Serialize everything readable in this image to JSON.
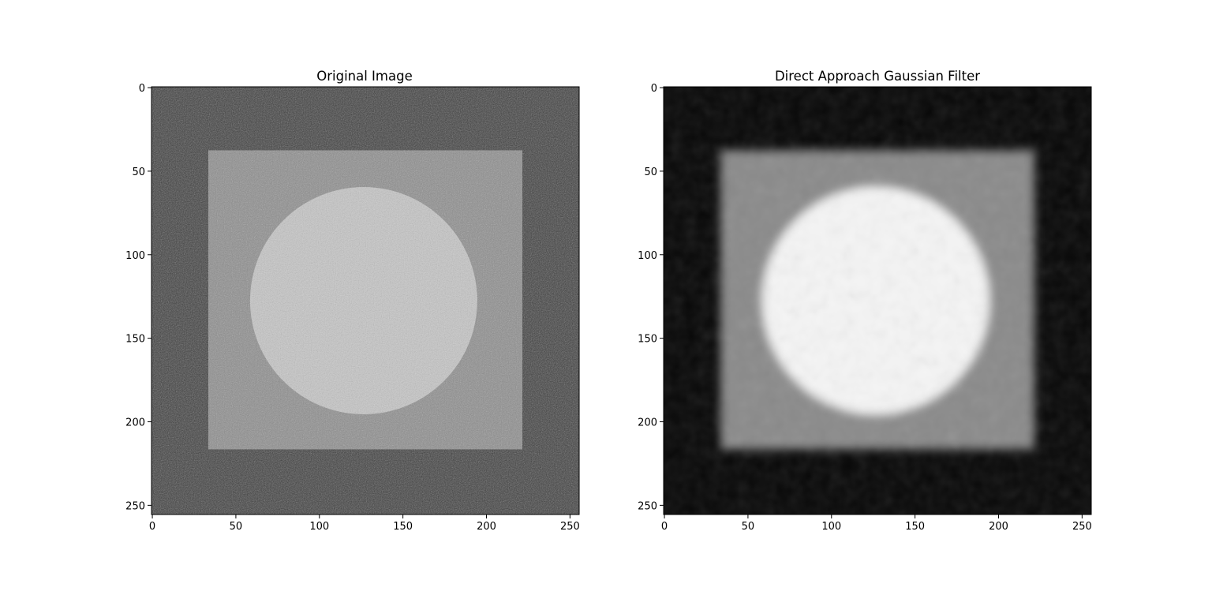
{
  "chart_data": [
    {
      "type": "heatmap",
      "title": "Original Image",
      "xlabel": "",
      "ylabel": "",
      "xlim": [
        0,
        256
      ],
      "ylim": [
        256,
        0
      ],
      "xticks": [
        0,
        50,
        100,
        150,
        200,
        250
      ],
      "yticks": [
        0,
        50,
        100,
        150,
        200,
        250
      ],
      "xtick_labels": [
        "0",
        "50",
        "100",
        "150",
        "200",
        "250"
      ],
      "ytick_labels": [
        "0",
        "50",
        "100",
        "150",
        "200",
        "250"
      ],
      "colormap": "gray",
      "image_size": [
        256,
        256
      ],
      "content": {
        "background": {
          "intensity": 0.24,
          "color": "#3c3c3c"
        },
        "square": {
          "x0": 34,
          "x1": 222,
          "y0": 38,
          "y1": 217,
          "intensity": 0.55,
          "color": "#8c8c8c"
        },
        "circle": {
          "cx": 127,
          "cy": 128,
          "r": 68,
          "intensity": 0.78,
          "color": "#c6c6c6"
        },
        "noise": "high",
        "blur": "none"
      }
    },
    {
      "type": "heatmap",
      "title": "Direct Approach Gaussian Filter",
      "xlabel": "",
      "ylabel": "",
      "xlim": [
        0,
        256
      ],
      "ylim": [
        256,
        0
      ],
      "xticks": [
        0,
        50,
        100,
        150,
        200,
        250
      ],
      "yticks": [
        0,
        50,
        100,
        150,
        200,
        250
      ],
      "xtick_labels": [
        "0",
        "50",
        "100",
        "150",
        "200",
        "250"
      ],
      "ytick_labels": [
        "0",
        "50",
        "100",
        "150",
        "200",
        "250"
      ],
      "colormap": "gray",
      "image_size": [
        256,
        256
      ],
      "content": {
        "background": {
          "intensity": 0.03,
          "color": "#080808"
        },
        "square": {
          "x0": 34,
          "x1": 222,
          "y0": 38,
          "y1": 217,
          "intensity": 0.55,
          "color": "#8a8a8a"
        },
        "circle": {
          "cx": 127,
          "cy": 128,
          "r": 68,
          "intensity": 0.96,
          "color": "#f4f4f4"
        },
        "noise": "low",
        "blur": "gaussian"
      }
    }
  ]
}
